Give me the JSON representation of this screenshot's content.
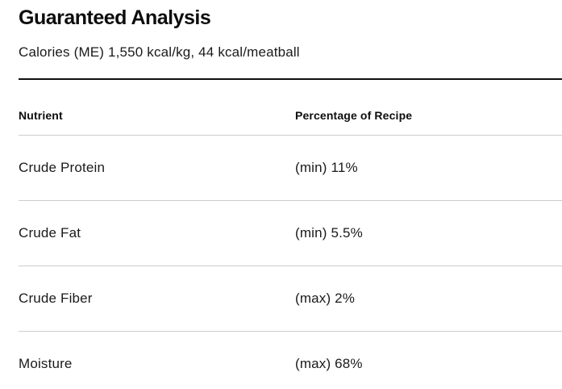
{
  "section": {
    "title": "Guaranteed Analysis",
    "subtitle": "Calories (ME) 1,550 kcal/kg, 44 kcal/meatball"
  },
  "table": {
    "columns": [
      "Nutrient",
      "Percentage of Recipe"
    ],
    "rows": [
      {
        "nutrient": "Crude Protein",
        "percentage": "(min) 11%"
      },
      {
        "nutrient": "Crude Fat",
        "percentage": "(min) 5.5%"
      },
      {
        "nutrient": "Crude Fiber",
        "percentage": "(max) 2%"
      },
      {
        "nutrient": "Moisture",
        "percentage": "(max) 68%"
      }
    ]
  },
  "colors": {
    "text": "#121212",
    "divider_strong": "#111111",
    "divider_light": "#cccccc",
    "background": "#ffffff"
  }
}
